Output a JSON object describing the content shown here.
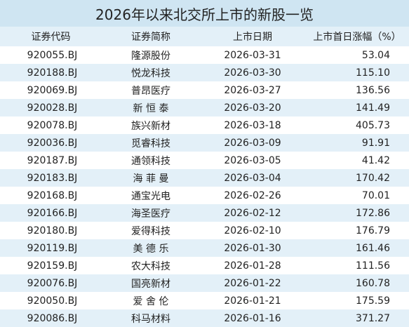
{
  "title": "2026年以来北交所上市的新股一览",
  "headers": [
    "证券代码",
    "证券简称",
    "上市日期",
    "上市首日涨幅（%）"
  ],
  "rows": [
    [
      "920055.BJ",
      "隆源股份",
      "2026-03-31",
      "53.04"
    ],
    [
      "920188.BJ",
      "悦龙科技",
      "2026-03-30",
      "115.10"
    ],
    [
      "920069.BJ",
      "普昂医疗",
      "2026-03-27",
      "136.56"
    ],
    [
      "920028.BJ",
      "新 恒 泰",
      "2026-03-20",
      "141.49"
    ],
    [
      "920078.BJ",
      "族兴新材",
      "2026-03-18",
      "405.73"
    ],
    [
      "920036.BJ",
      "觅睿科技",
      "2026-03-09",
      "91.91"
    ],
    [
      "920187.BJ",
      "通领科技",
      "2026-03-05",
      "41.42"
    ],
    [
      "920183.BJ",
      "海 菲 曼",
      "2026-03-04",
      "170.42"
    ],
    [
      "920168.BJ",
      "通宝光电",
      "2026-02-26",
      "70.01"
    ],
    [
      "920166.BJ",
      "海圣医疗",
      "2026-02-12",
      "172.86"
    ],
    [
      "920180.BJ",
      "爱得科技",
      "2026-02-10",
      "176.79"
    ],
    [
      "920119.BJ",
      "美 德 乐",
      "2026-01-30",
      "161.46"
    ],
    [
      "920159.BJ",
      "农大科技",
      "2026-01-28",
      "111.56"
    ],
    [
      "920076.BJ",
      "国亮新材",
      "2026-01-22",
      "160.78"
    ],
    [
      "920050.BJ",
      "爱 舍 伦",
      "2026-01-21",
      "175.59"
    ],
    [
      "920086.BJ",
      "科马材料",
      "2026-01-16",
      "371.27"
    ]
  ],
  "colors": {
    "title_bg": "#cfe5f2",
    "header_bg": "#e3f0f8",
    "alt_row_bg": "#e3f0f8",
    "text": "#222222"
  }
}
